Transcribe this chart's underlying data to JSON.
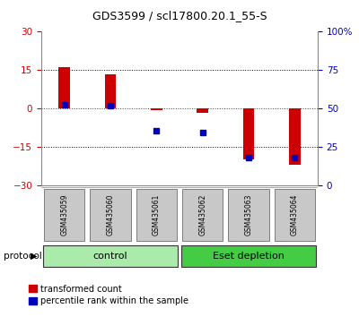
{
  "title": "GDS3599 / scl17800.20.1_55-S",
  "samples": [
    "GSM435059",
    "GSM435060",
    "GSM435061",
    "GSM435062",
    "GSM435063",
    "GSM435064"
  ],
  "groups": [
    {
      "name": "control",
      "indices": [
        0,
        1,
        2
      ]
    },
    {
      "name": "Eset depletion",
      "indices": [
        3,
        4,
        5
      ]
    }
  ],
  "red_values": [
    16.0,
    13.5,
    -0.5,
    -1.5,
    -20.0,
    -22.0
  ],
  "blue_y": [
    1.5,
    1.0,
    -8.5,
    -9.5,
    -19.0,
    -19.0
  ],
  "ylim": [
    -30,
    30
  ],
  "yticks_left": [
    -30,
    -15,
    0,
    15,
    30
  ],
  "hline_y": [
    15,
    -15
  ],
  "bar_width": 0.25,
  "blue_marker_size": 5,
  "protocol_label": "protocol",
  "legend_red": "transformed count",
  "legend_blue": "percentile rank within the sample",
  "red_color": "#cc0000",
  "blue_color": "#0000bb",
  "bg_plot": "#ffffff",
  "bg_sample_box": "#c8c8c8",
  "light_green": "#aaeaaa",
  "dark_green": "#44cc44",
  "title_fontsize": 9,
  "tick_fontsize": 7.5,
  "legend_fontsize": 7,
  "sample_fontsize": 5.5,
  "group_fontsize": 8
}
